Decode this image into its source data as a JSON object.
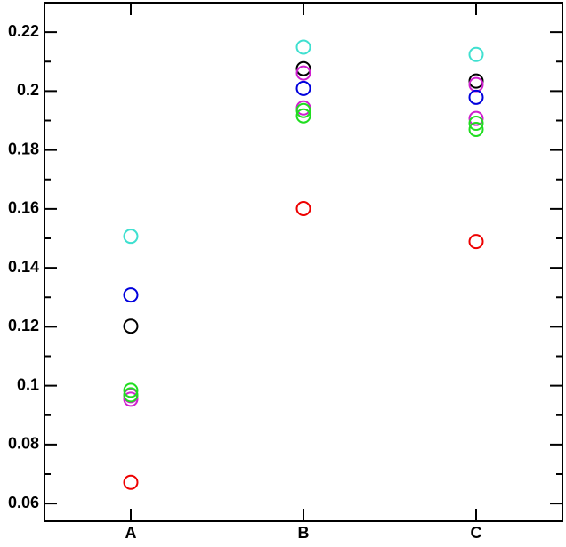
{
  "chart_data": {
    "type": "scatter",
    "categories": [
      "A",
      "B",
      "C"
    ],
    "series": [
      {
        "color": "#40e0d0",
        "values": [
          0.1507,
          0.2149,
          0.2124
        ]
      },
      {
        "color": "#000000",
        "values": [
          0.1202,
          0.2076,
          0.2034
        ]
      },
      {
        "color": "#d020d0",
        "values": [
          0.0966,
          0.2061,
          0.2022
        ]
      },
      {
        "color": "#0000dd",
        "values": [
          0.1308,
          0.2009,
          0.1979
        ]
      },
      {
        "color": "#d020d0",
        "values": [
          0.0954,
          0.1943,
          0.1907
        ]
      },
      {
        "color": "#20dd20",
        "values": [
          0.0984,
          0.1934,
          0.1891
        ]
      },
      {
        "color": "#20dd20",
        "values": [
          0.0969,
          0.1916,
          0.187
        ]
      },
      {
        "color": "#ee0000",
        "values": [
          0.0672,
          0.1601,
          0.1489
        ]
      }
    ],
    "ylim": [
      0.054,
      0.23
    ],
    "yticks": [
      0.06,
      0.08,
      0.1,
      0.12,
      0.14,
      0.16,
      0.18,
      0.2,
      0.22
    ],
    "yminor_ticks": [
      0.07,
      0.09,
      0.11,
      0.13,
      0.15,
      0.17,
      0.19,
      0.21
    ]
  }
}
